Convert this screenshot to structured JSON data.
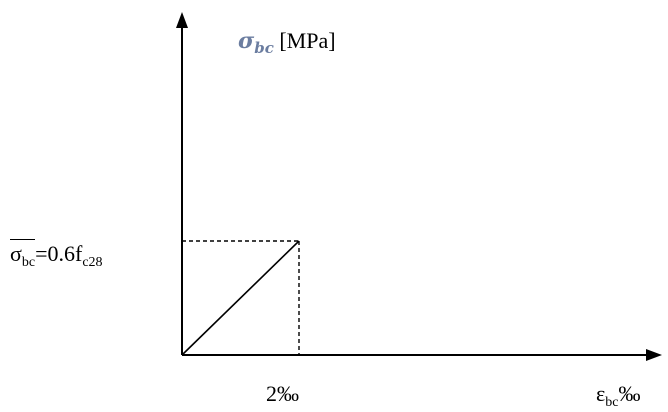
{
  "y_axis": {
    "symbol": "σ",
    "symbol_sub": "bc",
    "unit": "[MPa]"
  },
  "x_axis": {
    "symbol": "ε",
    "symbol_sub": "bc",
    "unit": "‰"
  },
  "limit_stress": {
    "symbol": "σ",
    "symbol_sub": "bc",
    "equals": "=0.6f",
    "value_sub": "c28"
  },
  "strain_tick": "2‰"
}
